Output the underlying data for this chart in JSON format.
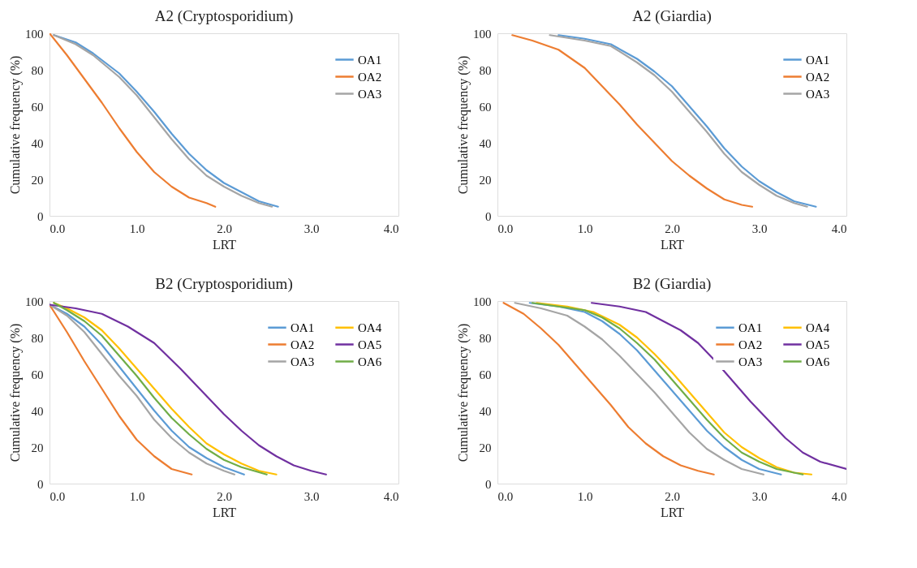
{
  "chart_data": [
    {
      "type": "line",
      "title": "A2 (Cryptosporidium)",
      "xlabel": "LRT",
      "ylabel": "Cumulative frequency (%)",
      "xlim": [
        0,
        4
      ],
      "ylim": [
        0,
        100
      ],
      "xticks": [
        {
          "value": 0,
          "label": "0.0"
        },
        {
          "value": 1,
          "label": "1.0"
        },
        {
          "value": 2,
          "label": "2.0"
        },
        {
          "value": 3,
          "label": "3.0"
        },
        {
          "value": 4,
          "label": "4.0"
        }
      ],
      "yticks": [
        0,
        20,
        40,
        60,
        80,
        100
      ],
      "grid": false,
      "legend": "top right",
      "series": [
        {
          "name": "OA1",
          "color": "#5b9bd5",
          "x": [
            0.05,
            0.3,
            0.5,
            0.8,
            1.0,
            1.2,
            1.4,
            1.6,
            1.8,
            2.0,
            2.2,
            2.4,
            2.62
          ],
          "values": [
            99,
            95,
            89,
            78,
            68,
            57,
            45,
            34,
            25,
            18,
            13,
            8,
            5
          ]
        },
        {
          "name": "OA2",
          "color": "#ed7d31",
          "x": [
            0,
            0.2,
            0.4,
            0.6,
            0.8,
            1.0,
            1.2,
            1.4,
            1.6,
            1.8,
            1.9
          ],
          "values": [
            100,
            88,
            75,
            62,
            48,
            35,
            24,
            16,
            10,
            7,
            5
          ]
        },
        {
          "name": "OA3",
          "color": "#a5a5a5",
          "x": [
            0.05,
            0.3,
            0.5,
            0.8,
            1.0,
            1.2,
            1.4,
            1.6,
            1.8,
            2.0,
            2.2,
            2.4,
            2.55
          ],
          "values": [
            99,
            94,
            88,
            76,
            66,
            54,
            42,
            31,
            22,
            16,
            11,
            7,
            5
          ]
        }
      ]
    },
    {
      "type": "line",
      "title": "A2 (Giardia)",
      "xlabel": "LRT",
      "ylabel": "Cumulative frequency (%)",
      "xlim": [
        0,
        4
      ],
      "ylim": [
        0,
        100
      ],
      "xticks": [
        {
          "value": 0,
          "label": "0.0"
        },
        {
          "value": 1,
          "label": "1.0"
        },
        {
          "value": 2,
          "label": "2.0"
        },
        {
          "value": 3,
          "label": "3.0"
        },
        {
          "value": 4,
          "label": "4.0"
        }
      ],
      "yticks": [
        0,
        20,
        40,
        60,
        80,
        100
      ],
      "grid": false,
      "legend": "top right",
      "series": [
        {
          "name": "OA1",
          "color": "#5b9bd5",
          "x": [
            0.7,
            1.0,
            1.3,
            1.6,
            1.8,
            2.0,
            2.2,
            2.4,
            2.6,
            2.8,
            3.0,
            3.2,
            3.4,
            3.65
          ],
          "values": [
            99,
            97,
            94,
            86,
            79,
            71,
            60,
            49,
            37,
            27,
            19,
            13,
            8,
            5
          ]
        },
        {
          "name": "OA2",
          "color": "#ed7d31",
          "x": [
            0.17,
            0.4,
            0.7,
            1.0,
            1.2,
            1.4,
            1.6,
            1.8,
            2.0,
            2.2,
            2.4,
            2.6,
            2.8,
            2.92
          ],
          "values": [
            99,
            96,
            91,
            81,
            71,
            61,
            50,
            40,
            30,
            22,
            15,
            9,
            6,
            5
          ]
        },
        {
          "name": "OA3",
          "color": "#a5a5a5",
          "x": [
            0.6,
            1.0,
            1.3,
            1.6,
            1.8,
            2.0,
            2.2,
            2.4,
            2.6,
            2.8,
            3.0,
            3.2,
            3.4,
            3.55
          ],
          "values": [
            99,
            96,
            93,
            84,
            77,
            68,
            57,
            46,
            34,
            24,
            17,
            11,
            7,
            5
          ]
        }
      ]
    },
    {
      "type": "line",
      "title": "B2 (Cryptosporidium)",
      "xlabel": "LRT",
      "ylabel": "Cumulative frequency (%)",
      "xlim": [
        0,
        4
      ],
      "ylim": [
        0,
        100
      ],
      "xticks": [
        {
          "value": 0,
          "label": "0.0"
        },
        {
          "value": 1,
          "label": "1.0"
        },
        {
          "value": 2,
          "label": "2.0"
        },
        {
          "value": 3,
          "label": "3.0"
        },
        {
          "value": 4,
          "label": "4.0"
        }
      ],
      "yticks": [
        0,
        20,
        40,
        60,
        80,
        100
      ],
      "grid": false,
      "legend": "top right",
      "series": [
        {
          "name": "OA1",
          "color": "#5b9bd5",
          "x": [
            0,
            0.2,
            0.4,
            0.6,
            0.8,
            1.0,
            1.2,
            1.4,
            1.6,
            1.8,
            2.0,
            2.23
          ],
          "values": [
            98,
            93,
            86,
            76,
            64,
            52,
            40,
            29,
            20,
            14,
            9,
            5
          ]
        },
        {
          "name": "OA2",
          "color": "#ed7d31",
          "x": [
            0,
            0.2,
            0.4,
            0.6,
            0.8,
            1.0,
            1.2,
            1.4,
            1.63
          ],
          "values": [
            98,
            83,
            67,
            52,
            37,
            24,
            15,
            8,
            5
          ]
        },
        {
          "name": "OA3",
          "color": "#a5a5a5",
          "x": [
            0,
            0.2,
            0.4,
            0.6,
            0.8,
            1.0,
            1.2,
            1.4,
            1.6,
            1.8,
            2.0,
            2.12
          ],
          "values": [
            98,
            92,
            83,
            71,
            59,
            48,
            35,
            25,
            17,
            11,
            7,
            5
          ]
        },
        {
          "name": "OA4",
          "color": "#ffc000",
          "x": [
            0.05,
            0.2,
            0.4,
            0.6,
            0.8,
            1.0,
            1.2,
            1.4,
            1.6,
            1.8,
            2.0,
            2.2,
            2.4,
            2.6
          ],
          "values": [
            99,
            96,
            91,
            84,
            74,
            63,
            52,
            41,
            31,
            22,
            16,
            11,
            7,
            5
          ]
        },
        {
          "name": "OA5",
          "color": "#7030a0",
          "x": [
            0,
            0.3,
            0.6,
            0.9,
            1.2,
            1.5,
            1.8,
            2.0,
            2.2,
            2.4,
            2.6,
            2.8,
            3.0,
            3.17
          ],
          "values": [
            98,
            96,
            93,
            86,
            77,
            63,
            48,
            38,
            29,
            21,
            15,
            10,
            7,
            5
          ]
        },
        {
          "name": "OA6",
          "color": "#70ad47",
          "x": [
            0.05,
            0.2,
            0.4,
            0.6,
            0.8,
            1.0,
            1.2,
            1.4,
            1.6,
            1.8,
            2.0,
            2.2,
            2.49
          ],
          "values": [
            99,
            95,
            89,
            81,
            70,
            59,
            47,
            36,
            27,
            19,
            13,
            9,
            5
          ]
        }
      ]
    },
    {
      "type": "line",
      "title": "B2 (Giardia)",
      "xlabel": "LRT",
      "ylabel": "Cumulative frequency (%)",
      "xlim": [
        0,
        4
      ],
      "ylim": [
        0,
        100
      ],
      "xticks": [
        {
          "value": 0,
          "label": "0.0"
        },
        {
          "value": 1,
          "label": "1.0"
        },
        {
          "value": 2,
          "label": "2.0"
        },
        {
          "value": 3,
          "label": "3.0"
        },
        {
          "value": 4,
          "label": "4.0"
        }
      ],
      "yticks": [
        0,
        20,
        40,
        60,
        80,
        100
      ],
      "grid": false,
      "legend": "top right",
      "series": [
        {
          "name": "OA1",
          "color": "#5b9bd5",
          "x": [
            0.37,
            0.7,
            1.0,
            1.2,
            1.4,
            1.6,
            1.8,
            2.0,
            2.2,
            2.4,
            2.6,
            2.8,
            3.0,
            3.25
          ],
          "values": [
            99,
            97,
            94,
            89,
            82,
            73,
            62,
            51,
            40,
            29,
            20,
            13,
            8,
            5
          ]
        },
        {
          "name": "OA2",
          "color": "#ed7d31",
          "x": [
            0.07,
            0.3,
            0.5,
            0.7,
            0.9,
            1.1,
            1.3,
            1.5,
            1.7,
            1.9,
            2.1,
            2.3,
            2.48
          ],
          "values": [
            99,
            93,
            85,
            76,
            65,
            54,
            43,
            31,
            22,
            15,
            10,
            7,
            5
          ]
        },
        {
          "name": "OA3",
          "color": "#a5a5a5",
          "x": [
            0.2,
            0.5,
            0.8,
            1.0,
            1.2,
            1.4,
            1.6,
            1.8,
            2.0,
            2.2,
            2.4,
            2.6,
            2.8,
            3.05
          ],
          "values": [
            99,
            96,
            92,
            86,
            79,
            70,
            60,
            50,
            39,
            28,
            19,
            13,
            8,
            5
          ]
        },
        {
          "name": "OA4",
          "color": "#ffc000",
          "x": [
            0.45,
            0.8,
            1.1,
            1.4,
            1.6,
            1.8,
            2.0,
            2.2,
            2.4,
            2.6,
            2.8,
            3.0,
            3.2,
            3.4,
            3.6
          ],
          "values": [
            99,
            97,
            94,
            87,
            80,
            71,
            61,
            50,
            39,
            28,
            20,
            14,
            9,
            6,
            5
          ]
        },
        {
          "name": "OA5",
          "color": "#7030a0",
          "x": [
            1.08,
            1.4,
            1.7,
            1.9,
            2.1,
            2.3,
            2.5,
            2.7,
            2.9,
            3.1,
            3.3,
            3.5,
            3.7,
            4.0
          ],
          "values": [
            99,
            97,
            94,
            89,
            84,
            77,
            67,
            56,
            45,
            35,
            25,
            17,
            12,
            8
          ]
        },
        {
          "name": "OA6",
          "color": "#70ad47",
          "x": [
            0.4,
            0.7,
            1.0,
            1.2,
            1.4,
            1.6,
            1.8,
            2.0,
            2.2,
            2.4,
            2.6,
            2.8,
            3.0,
            3.2,
            3.5
          ],
          "values": [
            99,
            97,
            95,
            91,
            85,
            77,
            68,
            57,
            46,
            35,
            25,
            17,
            12,
            8,
            5
          ]
        }
      ]
    }
  ]
}
